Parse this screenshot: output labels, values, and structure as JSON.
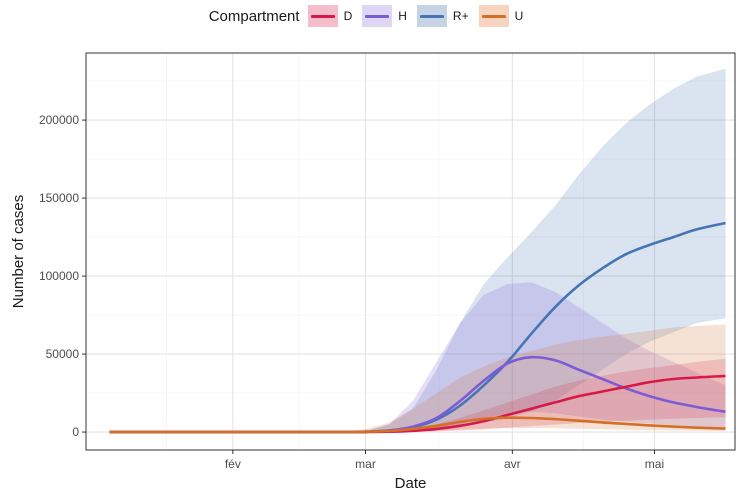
{
  "chart_data": {
    "type": "line",
    "title": "",
    "xlabel": "Date",
    "ylabel": "Number of cases",
    "legend": {
      "title": "Compartment",
      "position": "top"
    },
    "x_ticks": [
      {
        "label": "fév",
        "day": 32
      },
      {
        "label": "mar",
        "day": 60
      },
      {
        "label": "avr",
        "day": 91
      },
      {
        "label": "mai",
        "day": 121
      }
    ],
    "x_minor_days": [
      18,
      46,
      75.5,
      106
    ],
    "xlim_days": [
      1,
      138
    ],
    "y_ticks": [
      {
        "label": "0",
        "value": 0
      },
      {
        "label": "50000",
        "value": 50000
      },
      {
        "label": "100000",
        "value": 100000
      },
      {
        "label": "150000",
        "value": 150000
      },
      {
        "label": "200000",
        "value": 200000
      }
    ],
    "ylim": [
      -11500,
      243000
    ],
    "grid": true,
    "series": [
      {
        "name": "R+",
        "color": "#4575b4",
        "x": [
          6,
          55,
          60,
          65,
          70,
          75,
          80,
          85,
          90,
          95,
          100,
          105,
          110,
          115,
          120,
          125,
          130,
          136
        ],
        "y": [
          0,
          0,
          200,
          1000,
          3000,
          8000,
          17000,
          30000,
          45000,
          63000,
          80000,
          94000,
          105000,
          114000,
          120000,
          125000,
          130000,
          134000
        ],
        "lower": [
          0,
          0,
          0,
          100,
          400,
          1500,
          3500,
          6000,
          9000,
          13000,
          20000,
          30000,
          40000,
          50000,
          58000,
          64000,
          70000,
          73000
        ],
        "upper": [
          0,
          0,
          500,
          5000,
          15000,
          40000,
          70000,
          95000,
          112000,
          128000,
          145000,
          165000,
          183000,
          198000,
          210000,
          220000,
          228000,
          233000
        ]
      },
      {
        "name": "H",
        "color": "#7b5bd6",
        "x": [
          6,
          55,
          60,
          65,
          70,
          75,
          80,
          85,
          90,
          95,
          100,
          105,
          110,
          115,
          120,
          125,
          130,
          136
        ],
        "y": [
          0,
          0,
          200,
          1000,
          3500,
          9000,
          20000,
          33000,
          44000,
          48000,
          46000,
          40000,
          34000,
          28000,
          23000,
          19000,
          16000,
          13000
        ],
        "lower": [
          0,
          0,
          0,
          0,
          500,
          2000,
          5000,
          9000,
          12000,
          13000,
          12000,
          10000,
          8000,
          6500,
          5500,
          4500,
          3500,
          3000
        ],
        "upper": [
          0,
          0,
          500,
          5000,
          20000,
          45000,
          70000,
          88000,
          95000,
          96000,
          90000,
          80000,
          70000,
          60000,
          52000,
          45000,
          38000,
          30000
        ]
      },
      {
        "name": "D",
        "color": "#d7194a",
        "x": [
          6,
          55,
          60,
          65,
          70,
          75,
          80,
          85,
          90,
          95,
          100,
          105,
          110,
          115,
          120,
          125,
          130,
          136
        ],
        "y": [
          0,
          0,
          50,
          200,
          800,
          2000,
          4000,
          7000,
          11000,
          15000,
          19000,
          23000,
          26000,
          29000,
          32000,
          34000,
          35000,
          36000
        ],
        "lower": [
          0,
          0,
          0,
          0,
          200,
          400,
          1000,
          1800,
          2800,
          3800,
          4800,
          5800,
          6500,
          7200,
          8000,
          8500,
          9000,
          9500
        ],
        "upper": [
          0,
          0,
          300,
          1000,
          2500,
          5000,
          9000,
          14000,
          19000,
          24000,
          29000,
          33000,
          36000,
          39000,
          41000,
          43000,
          45000,
          47000
        ]
      },
      {
        "name": "U",
        "color": "#d46f27",
        "x": [
          6,
          55,
          60,
          65,
          70,
          75,
          80,
          85,
          90,
          95,
          100,
          105,
          110,
          115,
          120,
          125,
          130,
          136
        ],
        "y": [
          0,
          0,
          200,
          700,
          2000,
          4000,
          6500,
          8500,
          9200,
          9000,
          8300,
          7300,
          6200,
          5200,
          4300,
          3500,
          2800,
          2200
        ],
        "lower": [
          0,
          0,
          0,
          0,
          300,
          800,
          1500,
          2200,
          2600,
          2600,
          2400,
          2100,
          1800,
          1500,
          1200,
          1000,
          800,
          600
        ],
        "upper": [
          0,
          0,
          2000,
          6000,
          15000,
          25000,
          35000,
          42000,
          48000,
          52000,
          56000,
          59000,
          61000,
          63000,
          65000,
          67000,
          68000,
          69000
        ]
      }
    ]
  },
  "legend": {
    "title": "Compartment",
    "items": [
      {
        "label": "D",
        "color": "#d7194a",
        "band": "#f5bdc9"
      },
      {
        "label": "H",
        "color": "#7b5bd6",
        "band": "#ddd6f4"
      },
      {
        "label": "R+",
        "color": "#4575b4",
        "band": "#c7d4e6"
      },
      {
        "label": "U",
        "color": "#d46f27",
        "band": "#f6d4bf"
      }
    ]
  }
}
